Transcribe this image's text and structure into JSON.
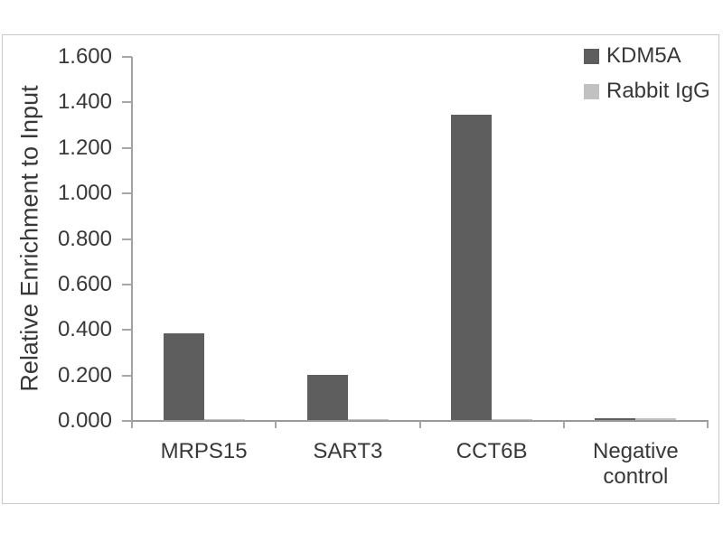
{
  "chart_data": {
    "type": "bar",
    "title": "",
    "xlabel": "",
    "ylabel": "Relative Enrichment to Input",
    "categories": [
      "MRPS15",
      "SART3",
      "CCT6B",
      "Negative control"
    ],
    "series": [
      {
        "name": "KDM5A",
        "color": "#5e5e5e",
        "values": [
          0.38,
          0.197,
          1.34,
          0.008
        ]
      },
      {
        "name": "Rabbit IgG",
        "color": "#c1c1c1",
        "values": [
          0.004,
          0.004,
          0.004,
          0.006
        ]
      }
    ],
    "ylim": [
      0,
      1.6
    ],
    "ytick_labels": [
      "0.000",
      "0.200",
      "0.400",
      "0.600",
      "0.800",
      "1.000",
      "1.200",
      "1.400",
      "1.600"
    ],
    "grid": false,
    "legend_position": "top-right"
  },
  "colors": {
    "frame_border": "#c9c9c9",
    "axis_line": "#a2a2a2",
    "text": "#383838",
    "background": "#ffffff"
  }
}
